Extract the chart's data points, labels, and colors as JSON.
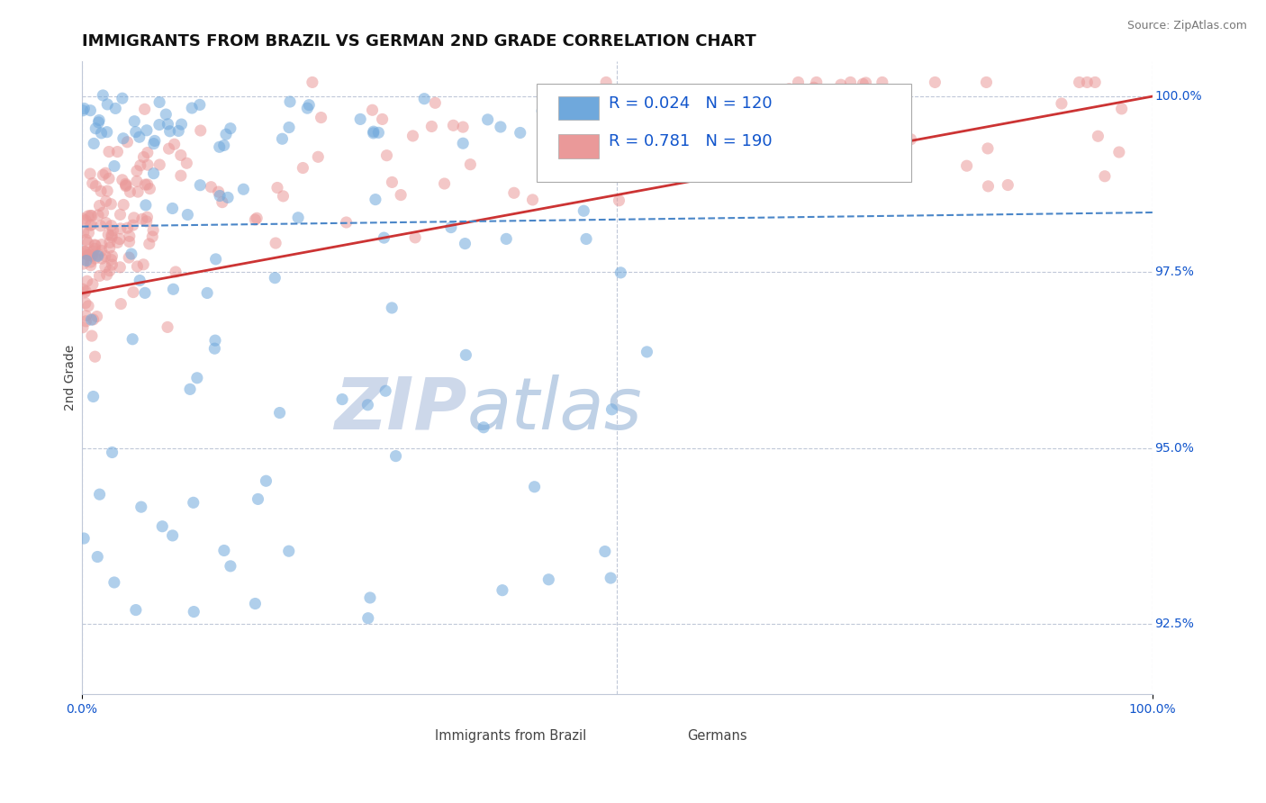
{
  "title": "IMMIGRANTS FROM BRAZIL VS GERMAN 2ND GRADE CORRELATION CHART",
  "source": "Source: ZipAtlas.com",
  "ylabel": "2nd Grade",
  "xlim": [
    0.0,
    1.0
  ],
  "ylim": [
    0.915,
    1.005
  ],
  "yticks": [
    0.925,
    0.95,
    0.975,
    1.0
  ],
  "ytick_labels": [
    "92.5%",
    "95.0%",
    "97.5%",
    "100.0%"
  ],
  "xtick_labels": [
    "0.0%",
    "100.0%"
  ],
  "blue_R": 0.024,
  "blue_N": 120,
  "pink_R": 0.781,
  "pink_N": 190,
  "blue_color": "#6fa8dc",
  "pink_color": "#ea9999",
  "blue_line_color": "#4a86c8",
  "pink_line_color": "#cc3333",
  "legend_R_color": "#1155cc",
  "watermark_zip": "ZIP",
  "watermark_atlas": "atlas",
  "watermark_color_zip": "#c8d4e8",
  "watermark_color_atlas": "#b8cce4",
  "background_color": "#ffffff",
  "grid_color": "#c0c8d8",
  "title_fontsize": 13,
  "label_fontsize": 10,
  "tick_fontsize": 10,
  "legend_fontsize": 13
}
